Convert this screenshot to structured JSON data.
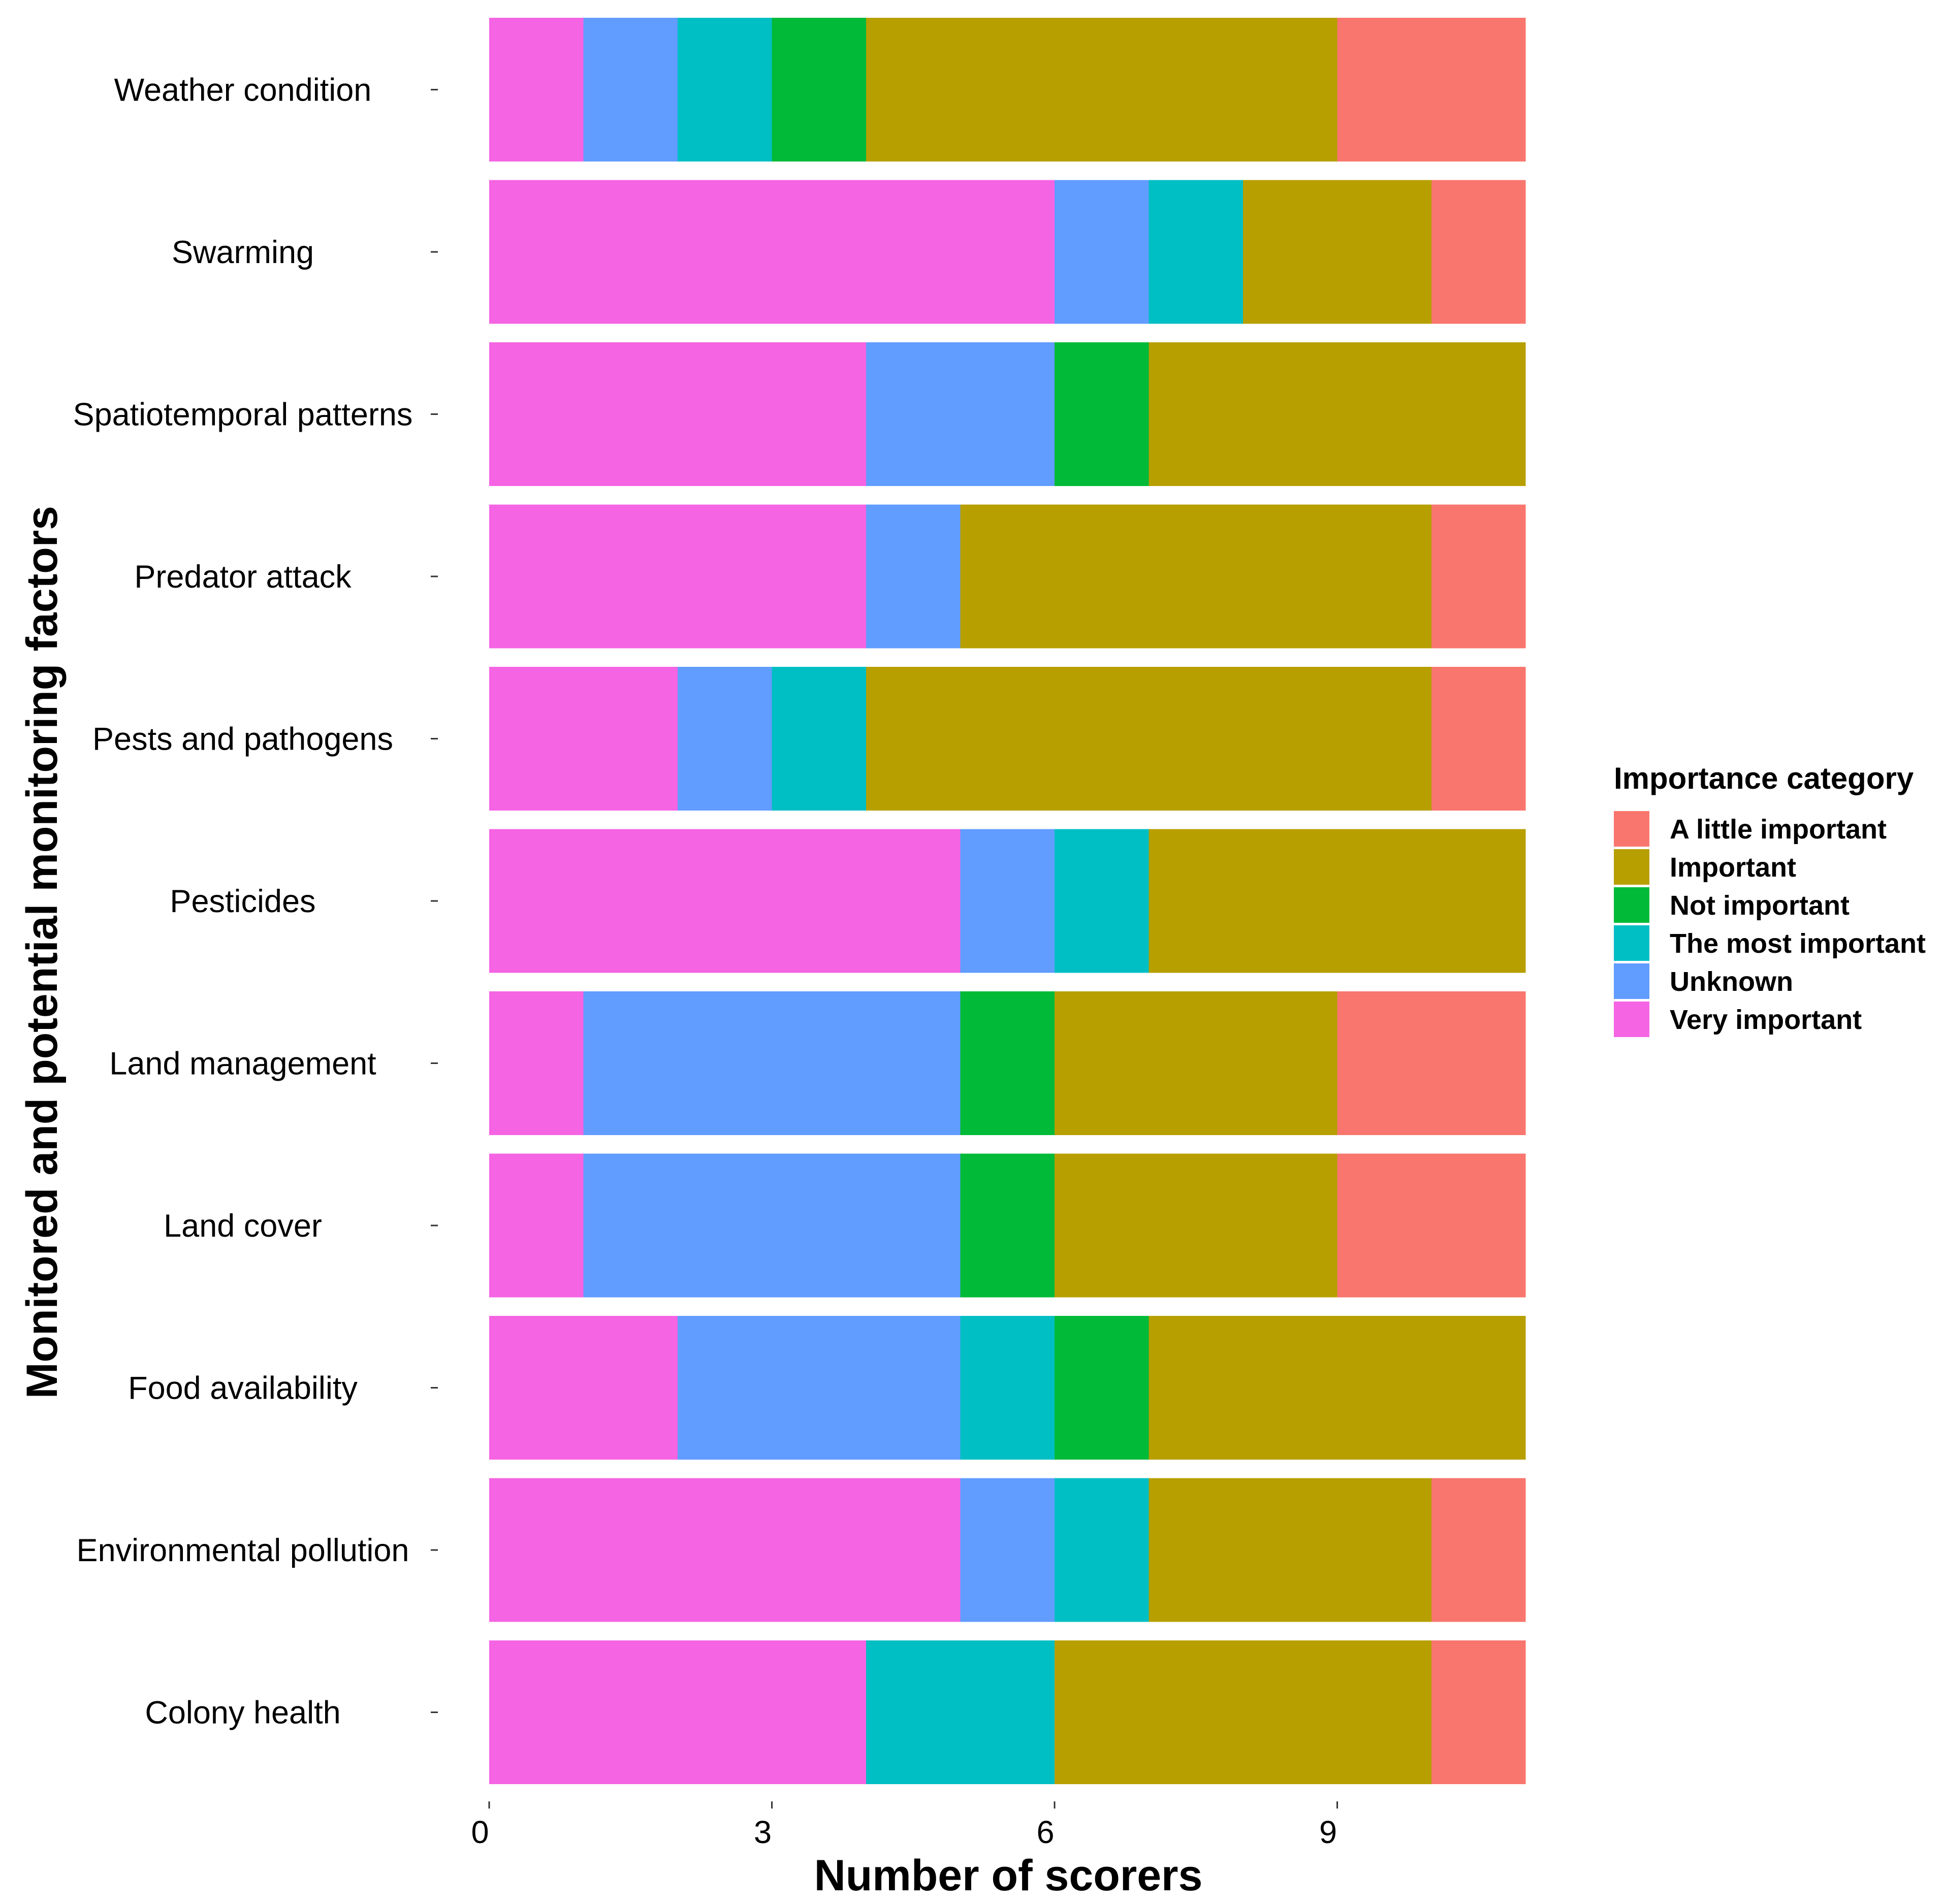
{
  "chart_data": {
    "type": "bar",
    "orientation": "horizontal",
    "stacked": true,
    "xlabel": "Number of scorers",
    "ylabel": "Monitored and potential monitoring factors",
    "xlim": [
      0,
      11
    ],
    "xticks": [
      0,
      3,
      6,
      9
    ],
    "grid": false,
    "legend": {
      "title": "Importance category",
      "position": "right"
    },
    "categories": [
      "Weather condition",
      "Swarming",
      "Spatiotemporal patterns",
      "Predator attack",
      "Pests and pathogens",
      "Pesticides",
      "Land management",
      "Land cover",
      "Food availability",
      "Environmental pollution",
      "Colony health"
    ],
    "stack_order": [
      "Very important",
      "Unknown",
      "The most important",
      "Not important",
      "Important",
      "A little important"
    ],
    "series": [
      {
        "name": "A little important",
        "color": "#F8766D",
        "values": [
          2,
          1,
          0,
          1,
          1,
          0,
          2,
          2,
          0,
          1,
          1
        ]
      },
      {
        "name": "Important",
        "color": "#B79F00",
        "values": [
          5,
          2,
          4,
          5,
          6,
          4,
          3,
          3,
          4,
          3,
          4
        ]
      },
      {
        "name": "Not important",
        "color": "#00BA38",
        "values": [
          1,
          0,
          1,
          0,
          0,
          0,
          1,
          1,
          1,
          0,
          0
        ]
      },
      {
        "name": "The most important",
        "color": "#00BFC4",
        "values": [
          1,
          1,
          0,
          0,
          1,
          1,
          0,
          0,
          1,
          1,
          2
        ]
      },
      {
        "name": "Unknown",
        "color": "#619CFF",
        "values": [
          1,
          1,
          2,
          1,
          1,
          1,
          4,
          4,
          3,
          1,
          0
        ]
      },
      {
        "name": "Very important",
        "color": "#F564E3",
        "values": [
          1,
          6,
          4,
          4,
          2,
          5,
          1,
          1,
          2,
          5,
          4
        ]
      }
    ]
  }
}
